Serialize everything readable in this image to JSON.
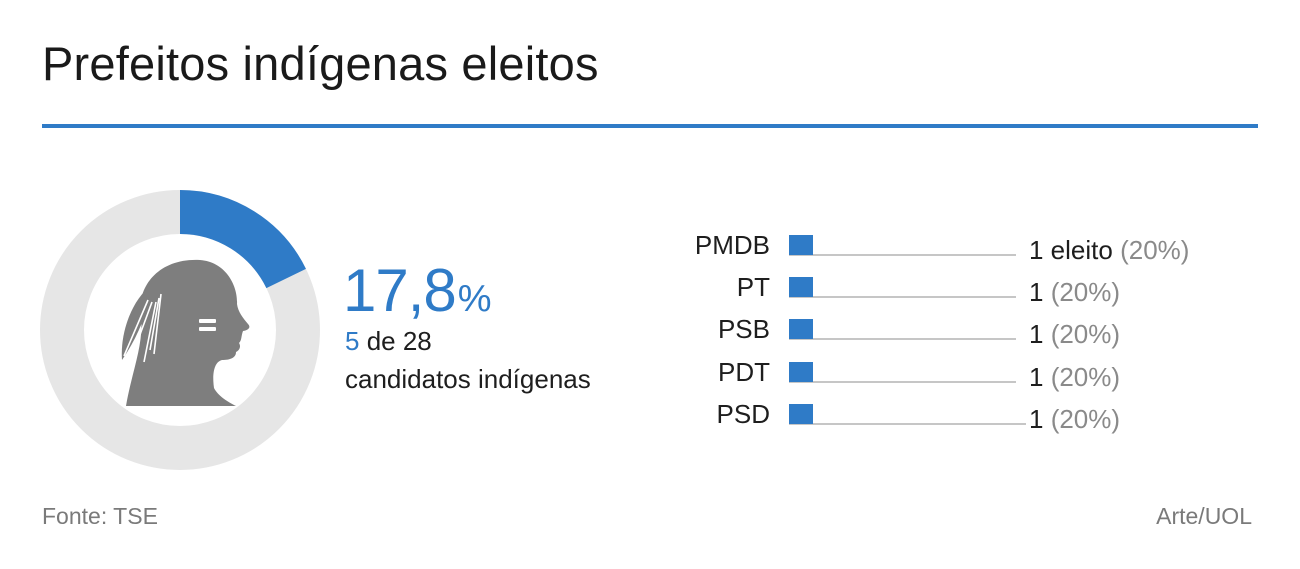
{
  "title": "Prefeitos indígenas eleitos",
  "colors": {
    "accent": "#2f7bc7",
    "track": "#e6e6e6",
    "figure": "#7e7e7e",
    "muted": "#8a8a8a",
    "text": "#1e1e1e"
  },
  "summary": {
    "percent_value": "17,8",
    "percent_sign": "%",
    "elected": "5",
    "of_total": " de 28",
    "candidates_label": "candidatos indígenas"
  },
  "icon": "indigenous-head-silhouette-icon",
  "source": "Fonte: TSE",
  "credit": "Arte/UOL",
  "chart_data": [
    {
      "type": "pie",
      "subtype": "donut",
      "values": [
        17.8,
        82.2
      ],
      "highlight_index": 0
    },
    {
      "type": "bar",
      "orientation": "horizontal",
      "categories": [
        "PMDB",
        "PT",
        "PSB",
        "PDT",
        "PSD"
      ],
      "values": [
        1,
        1,
        1,
        1,
        1
      ],
      "value_labels": [
        "1 eleito",
        "1",
        "1",
        "1",
        "1"
      ],
      "share_labels": [
        "(20%)",
        "(20%)",
        "(20%)",
        "(20%)",
        "(20%)"
      ],
      "xlim": [
        0,
        5
      ]
    }
  ]
}
